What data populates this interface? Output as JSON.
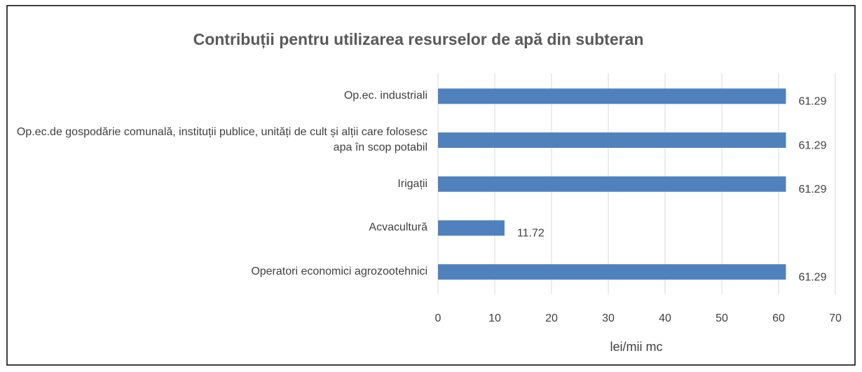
{
  "chart_data": {
    "type": "barh",
    "title": "Contribuții pentru utilizarea resurselor de apă din subteran",
    "x_label": "lei/mii mc",
    "categories": [
      "Op.ec. industriali",
      "Op.ec.de gospodărie comunală, instituții publice, unități de cult și alții care folosesc apa în scop potabil",
      "Irigații",
      "Acvacultură",
      "Operatori economici agrozootehnici"
    ],
    "values": [
      61.29,
      61.29,
      61.29,
      11.72,
      61.29
    ],
    "color": "#4f81bd",
    "xlim": [
      0,
      70
    ],
    "xticks": [
      0,
      10,
      20,
      30,
      40,
      50,
      60,
      70
    ],
    "grid": true
  }
}
